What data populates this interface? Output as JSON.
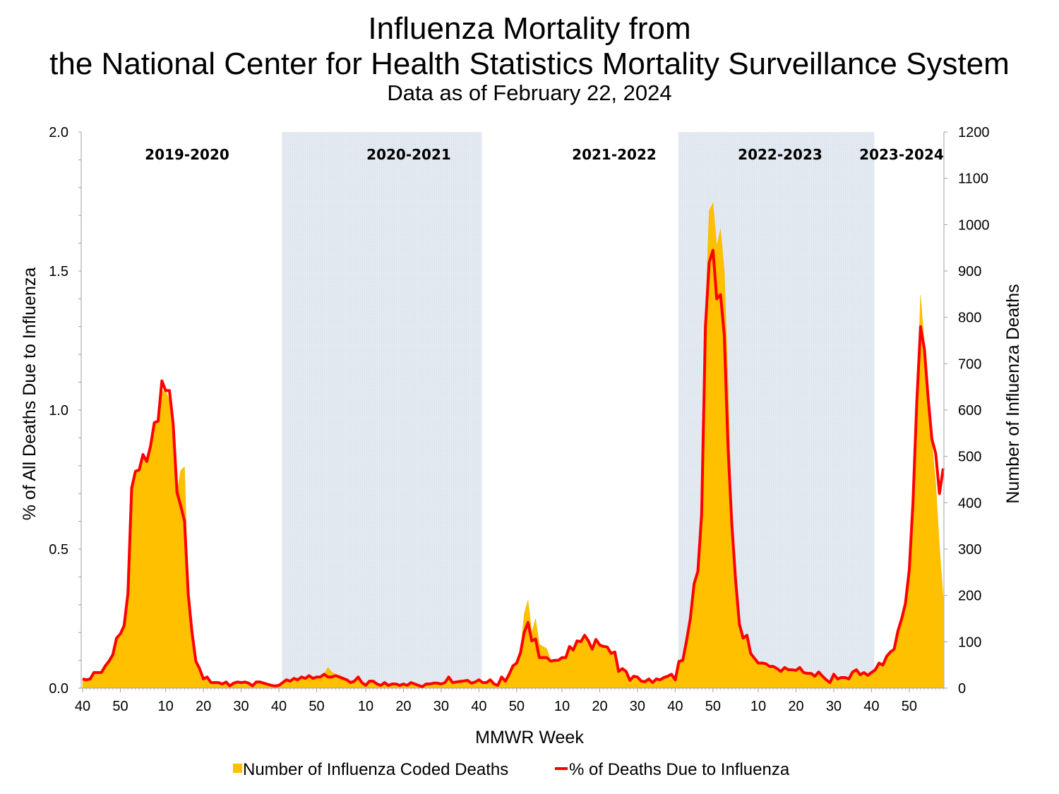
{
  "chart_data": {
    "type": "area+line",
    "title": "Influenza Mortality from",
    "title_line2": "the National Center for Health Statistics Mortality Surveillance System",
    "subtitle": "Data as of February 22, 2024",
    "xlabel": "MMWR Week",
    "ylabel_left": "% of All Deaths Due to Influenza",
    "ylabel_right": "Number of Influenza Deaths",
    "ylim_left": [
      0,
      2.0
    ],
    "ylim_right": [
      0,
      1200
    ],
    "yticks_left": [
      "0.0",
      "0.5",
      "1.0",
      "1.5",
      "2.0"
    ],
    "yticks_right": [
      "0",
      "100",
      "200",
      "300",
      "400",
      "500",
      "600",
      "700",
      "800",
      "900",
      "1000",
      "1100",
      "1200"
    ],
    "x_tick_weeks": [
      40,
      50,
      10,
      20,
      30
    ],
    "grid": false,
    "legend_position": "bottom",
    "colors": {
      "deaths": "#FFC000",
      "pct": "#FF0000",
      "shaded_season": "#E4EAF1"
    },
    "seasons": [
      {
        "label": "2019-2020",
        "shaded": false
      },
      {
        "label": "2020-2021",
        "shaded": true
      },
      {
        "label": "2021-2022",
        "shaded": false
      },
      {
        "label": "2022-2023",
        "shaded": true
      },
      {
        "label": "2023-2024",
        "shaded": false
      }
    ],
    "x": [
      40,
      41,
      42,
      43,
      44,
      45,
      46,
      47,
      48,
      49,
      50,
      51,
      52,
      1,
      2,
      3,
      4,
      5,
      6,
      7,
      8,
      9,
      10,
      11,
      12,
      13,
      14,
      15,
      16,
      17,
      18,
      19,
      20,
      21,
      22,
      23,
      24,
      25,
      26,
      27,
      28,
      29,
      30,
      31,
      32,
      33,
      34,
      35,
      36,
      37,
      38,
      39,
      40,
      41,
      42,
      43,
      44,
      45,
      46,
      47,
      48,
      49,
      50,
      51,
      52,
      53,
      1,
      2,
      3,
      4,
      5,
      6,
      7,
      8,
      9,
      10,
      11,
      12,
      13,
      14,
      15,
      16,
      17,
      18,
      19,
      20,
      21,
      22,
      23,
      24,
      25,
      26,
      27,
      28,
      29,
      30,
      31,
      32,
      33,
      34,
      35,
      36,
      37,
      38,
      39,
      40,
      41,
      42,
      43,
      44,
      45,
      46,
      47,
      48,
      49,
      50,
      51,
      52,
      1,
      2,
      3,
      4,
      5,
      6,
      7,
      8,
      9,
      10,
      11,
      12,
      13,
      14,
      15,
      16,
      17,
      18,
      19,
      20,
      21,
      22,
      23,
      24,
      25,
      26,
      27,
      28,
      29,
      30,
      31,
      32,
      33,
      34,
      35,
      36,
      37,
      38,
      39,
      40,
      41,
      42,
      43,
      44,
      45,
      46,
      47,
      48,
      49,
      50,
      51,
      52,
      1,
      2,
      3,
      4,
      5,
      6,
      7,
      8,
      9,
      10,
      11,
      12,
      13,
      14,
      15,
      16,
      17,
      18,
      19,
      20,
      21,
      22,
      23,
      24,
      25,
      26,
      27,
      28,
      29,
      30,
      31,
      32,
      33,
      34,
      35,
      36,
      37,
      38,
      39,
      40,
      41,
      42,
      43,
      44,
      45,
      46,
      47,
      48,
      49,
      50,
      51,
      52,
      1,
      2,
      3,
      4,
      5,
      6,
      7
    ],
    "season_of_point_counts": [
      53,
      53,
      52,
      52,
      20
    ],
    "series": [
      {
        "name": "Number of Influenza Coded Deaths",
        "type": "area",
        "axis": "right",
        "values": [
          20,
          18,
          20,
          34,
          34,
          34,
          48,
          58,
          72,
          108,
          117,
          135,
          204,
          432,
          468,
          471,
          504,
          489,
          522,
          573,
          576,
          640,
          642,
          620,
          570,
          423,
          470,
          478,
          200,
          120,
          58,
          42,
          20,
          24,
          12,
          12,
          12,
          9,
          13,
          5,
          11,
          13,
          12,
          13,
          11,
          5,
          13,
          13,
          11,
          8,
          6,
          5,
          8,
          14,
          20,
          17,
          23,
          20,
          26,
          23,
          30,
          24,
          26,
          26,
          30,
          45,
          35,
          30,
          28,
          24,
          20,
          14,
          16,
          25,
          14,
          7,
          16,
          16,
          10,
          7,
          13,
          7,
          10,
          10,
          7,
          10,
          7,
          13,
          10,
          7,
          4,
          10,
          10,
          12,
          12,
          10,
          13,
          25,
          13,
          14,
          15,
          16,
          17,
          12,
          14,
          18,
          12,
          12,
          18,
          9,
          6,
          24,
          15,
          30,
          48,
          55,
          80,
          160,
          190,
          120,
          150,
          95,
          90,
          85,
          60,
          60,
          60,
          66,
          66,
          90,
          82,
          102,
          100,
          114,
          102,
          84,
          105,
          93,
          90,
          89,
          75,
          78,
          36,
          42,
          36,
          17,
          26,
          24,
          15,
          14,
          20,
          12,
          20,
          18,
          23,
          26,
          30,
          18,
          58,
          60,
          102,
          150,
          225,
          252,
          375,
          800,
          1030,
          1047,
          953,
          990,
          900,
          655,
          354,
          234,
          138,
          108,
          114,
          75,
          64,
          54,
          54,
          53,
          47,
          47,
          42,
          36,
          44,
          40,
          40,
          38,
          44,
          34,
          32,
          32,
          26,
          35,
          26,
          18,
          12,
          30,
          20,
          23,
          23,
          20,
          35,
          40,
          29,
          34,
          28,
          34,
          40,
          54,
          50,
          68,
          78,
          84,
          123,
          150,
          183,
          255,
          402,
          618,
          848,
          740,
          640,
          530,
          445,
          305,
          195
        ]
      },
      {
        "name": "% of Deaths Due to Influenza",
        "type": "line",
        "axis": "left",
        "values": [
          0.033,
          0.03,
          0.033,
          0.056,
          0.056,
          0.056,
          0.08,
          0.097,
          0.12,
          0.18,
          0.195,
          0.225,
          0.34,
          0.72,
          0.78,
          0.785,
          0.84,
          0.815,
          0.87,
          0.955,
          0.96,
          1.105,
          1.07,
          1.07,
          0.95,
          0.705,
          0.655,
          0.6,
          0.335,
          0.2,
          0.097,
          0.07,
          0.033,
          0.04,
          0.02,
          0.02,
          0.02,
          0.015,
          0.022,
          0.008,
          0.018,
          0.022,
          0.02,
          0.022,
          0.018,
          0.008,
          0.022,
          0.022,
          0.018,
          0.014,
          0.01,
          0.008,
          0.01,
          0.02,
          0.03,
          0.025,
          0.035,
          0.03,
          0.04,
          0.035,
          0.045,
          0.035,
          0.04,
          0.04,
          0.05,
          0.04,
          0.04,
          0.045,
          0.04,
          0.035,
          0.03,
          0.02,
          0.025,
          0.04,
          0.02,
          0.01,
          0.025,
          0.025,
          0.015,
          0.01,
          0.02,
          0.01,
          0.015,
          0.015,
          0.01,
          0.015,
          0.01,
          0.02,
          0.015,
          0.01,
          0.005,
          0.015,
          0.015,
          0.018,
          0.018,
          0.015,
          0.02,
          0.04,
          0.02,
          0.022,
          0.024,
          0.026,
          0.028,
          0.018,
          0.022,
          0.03,
          0.02,
          0.02,
          0.03,
          0.015,
          0.01,
          0.04,
          0.025,
          0.05,
          0.08,
          0.09,
          0.127,
          0.2,
          0.236,
          0.17,
          0.177,
          0.11,
          0.11,
          0.11,
          0.097,
          0.1,
          0.1,
          0.11,
          0.11,
          0.15,
          0.137,
          0.17,
          0.167,
          0.19,
          0.17,
          0.14,
          0.175,
          0.155,
          0.15,
          0.148,
          0.125,
          0.13,
          0.06,
          0.07,
          0.06,
          0.028,
          0.043,
          0.04,
          0.025,
          0.023,
          0.033,
          0.02,
          0.033,
          0.03,
          0.038,
          0.043,
          0.05,
          0.03,
          0.096,
          0.1,
          0.17,
          0.25,
          0.375,
          0.42,
          0.625,
          1.3,
          1.53,
          1.575,
          1.4,
          1.415,
          1.27,
          0.86,
          0.59,
          0.39,
          0.23,
          0.18,
          0.19,
          0.125,
          0.107,
          0.09,
          0.09,
          0.088,
          0.078,
          0.078,
          0.07,
          0.06,
          0.074,
          0.066,
          0.066,
          0.064,
          0.074,
          0.056,
          0.053,
          0.053,
          0.043,
          0.058,
          0.043,
          0.03,
          0.02,
          0.05,
          0.033,
          0.038,
          0.038,
          0.033,
          0.058,
          0.066,
          0.048,
          0.056,
          0.046,
          0.056,
          0.066,
          0.09,
          0.083,
          0.114,
          0.13,
          0.14,
          0.205,
          0.25,
          0.305,
          0.425,
          0.67,
          1.03,
          1.3,
          1.22,
          1.045,
          0.895,
          0.845,
          0.7,
          0.79
        ]
      }
    ]
  }
}
